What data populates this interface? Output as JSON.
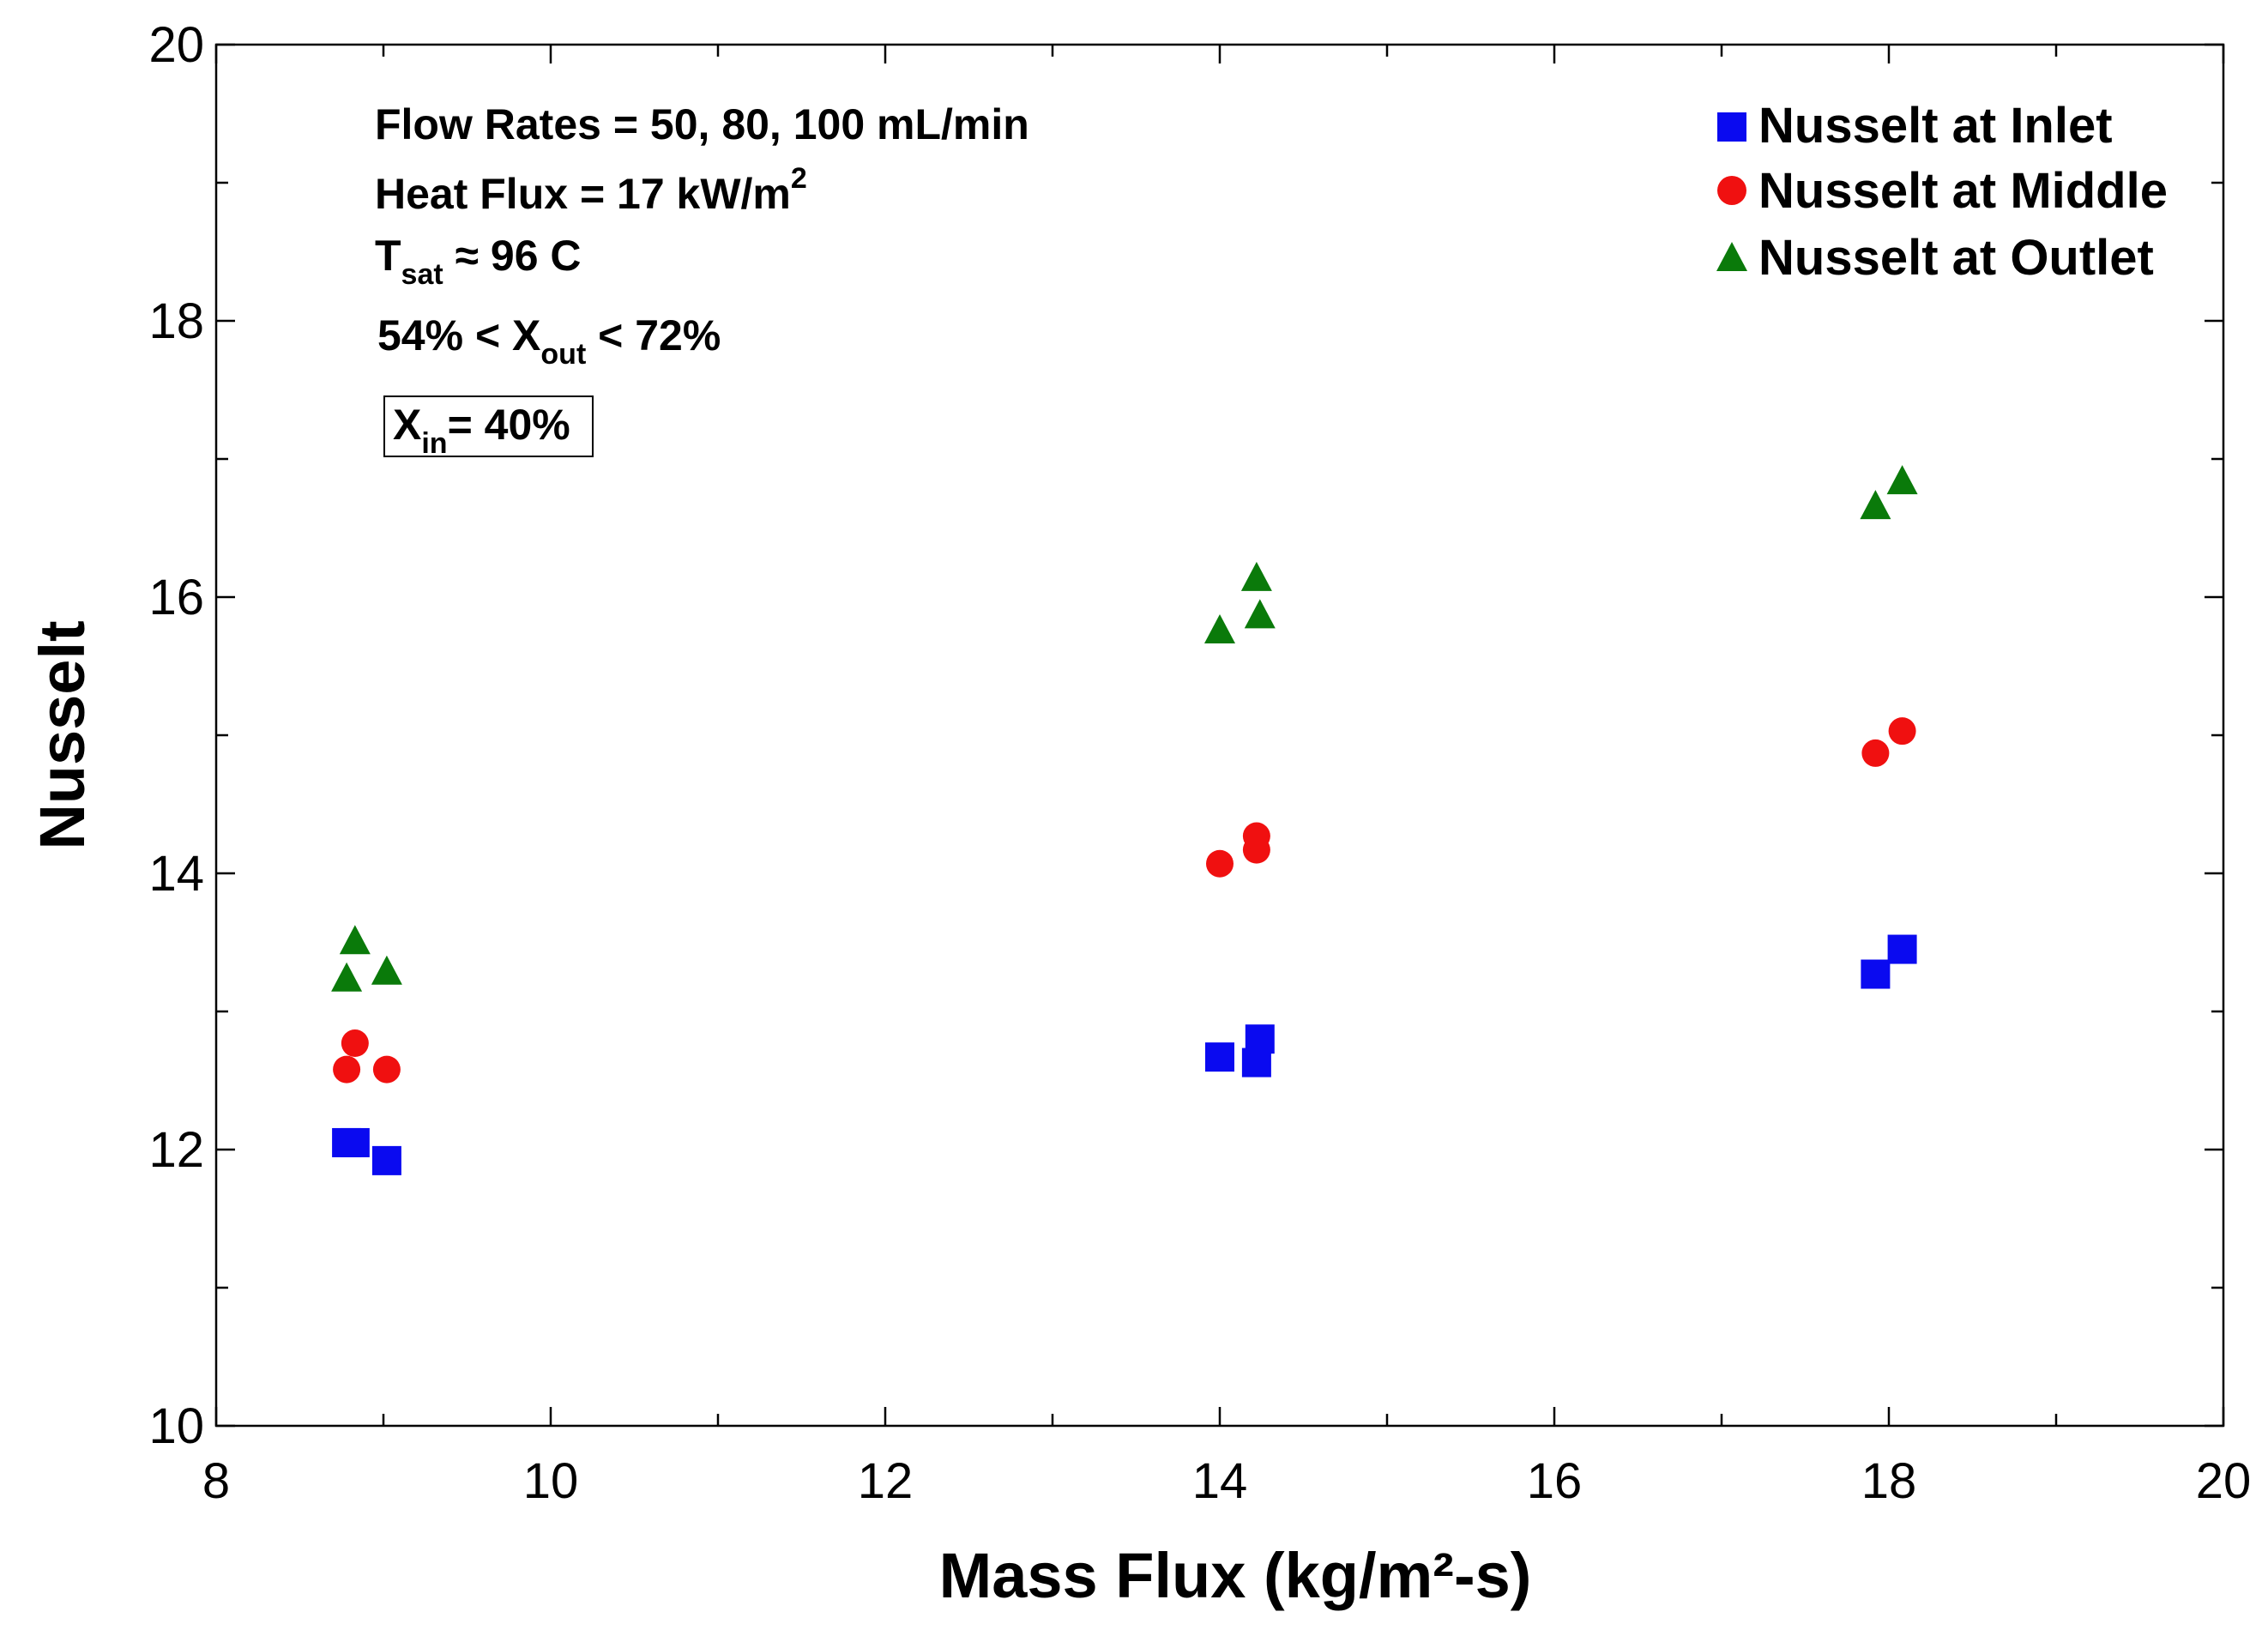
{
  "chart_data": {
    "type": "scatter",
    "title": "",
    "xlabel": "Mass Flux (kg/m²-s)",
    "ylabel": "Nusselt",
    "xlim": [
      8,
      20
    ],
    "ylim": [
      10,
      20
    ],
    "xticks": [
      8,
      10,
      12,
      14,
      16,
      18,
      20
    ],
    "yticks": [
      10,
      12,
      14,
      16,
      18,
      20
    ],
    "grid": false,
    "legend_position": "top-right",
    "series": [
      {
        "name": "Nusselt at Inlet",
        "marker": "square",
        "color": "#0a0af0",
        "points": [
          [
            8.78,
            12.05
          ],
          [
            8.83,
            12.05
          ],
          [
            9.02,
            11.92
          ],
          [
            14.0,
            12.67
          ],
          [
            14.22,
            12.63
          ],
          [
            14.24,
            12.8
          ],
          [
            17.92,
            13.27
          ],
          [
            18.08,
            13.45
          ]
        ]
      },
      {
        "name": "Nusselt at Middle",
        "marker": "circle",
        "color": "#f01010",
        "points": [
          [
            8.78,
            12.58
          ],
          [
            8.83,
            12.77
          ],
          [
            9.02,
            12.58
          ],
          [
            14.0,
            14.07
          ],
          [
            14.22,
            14.17
          ],
          [
            14.22,
            14.27
          ],
          [
            17.92,
            14.87
          ],
          [
            18.08,
            15.03
          ]
        ]
      },
      {
        "name": "Nusselt at Outlet",
        "marker": "triangle",
        "color": "#0a7a0a",
        "points": [
          [
            8.78,
            13.25
          ],
          [
            8.83,
            13.52
          ],
          [
            9.02,
            13.3
          ],
          [
            14.0,
            15.77
          ],
          [
            14.22,
            16.15
          ],
          [
            14.24,
            15.88
          ],
          [
            17.92,
            16.67
          ],
          [
            18.08,
            16.85
          ]
        ]
      }
    ],
    "annotations": {
      "flow_rates": "Flow Rates = 50, 80, 100 mL/min",
      "heat_flux_prefix": "Heat Flux = 17 kW/m",
      "heat_flux_sup": "2",
      "tsat_main": "T",
      "tsat_sub": "sat",
      "tsat_rest": " ≈ 96 C",
      "xout_prefix": "54% < X",
      "xout_sub": "out",
      "xout_suffix": " < 72%",
      "xin_main": "X",
      "xin_sub": "in",
      "xin_rest": "= 40%"
    }
  }
}
